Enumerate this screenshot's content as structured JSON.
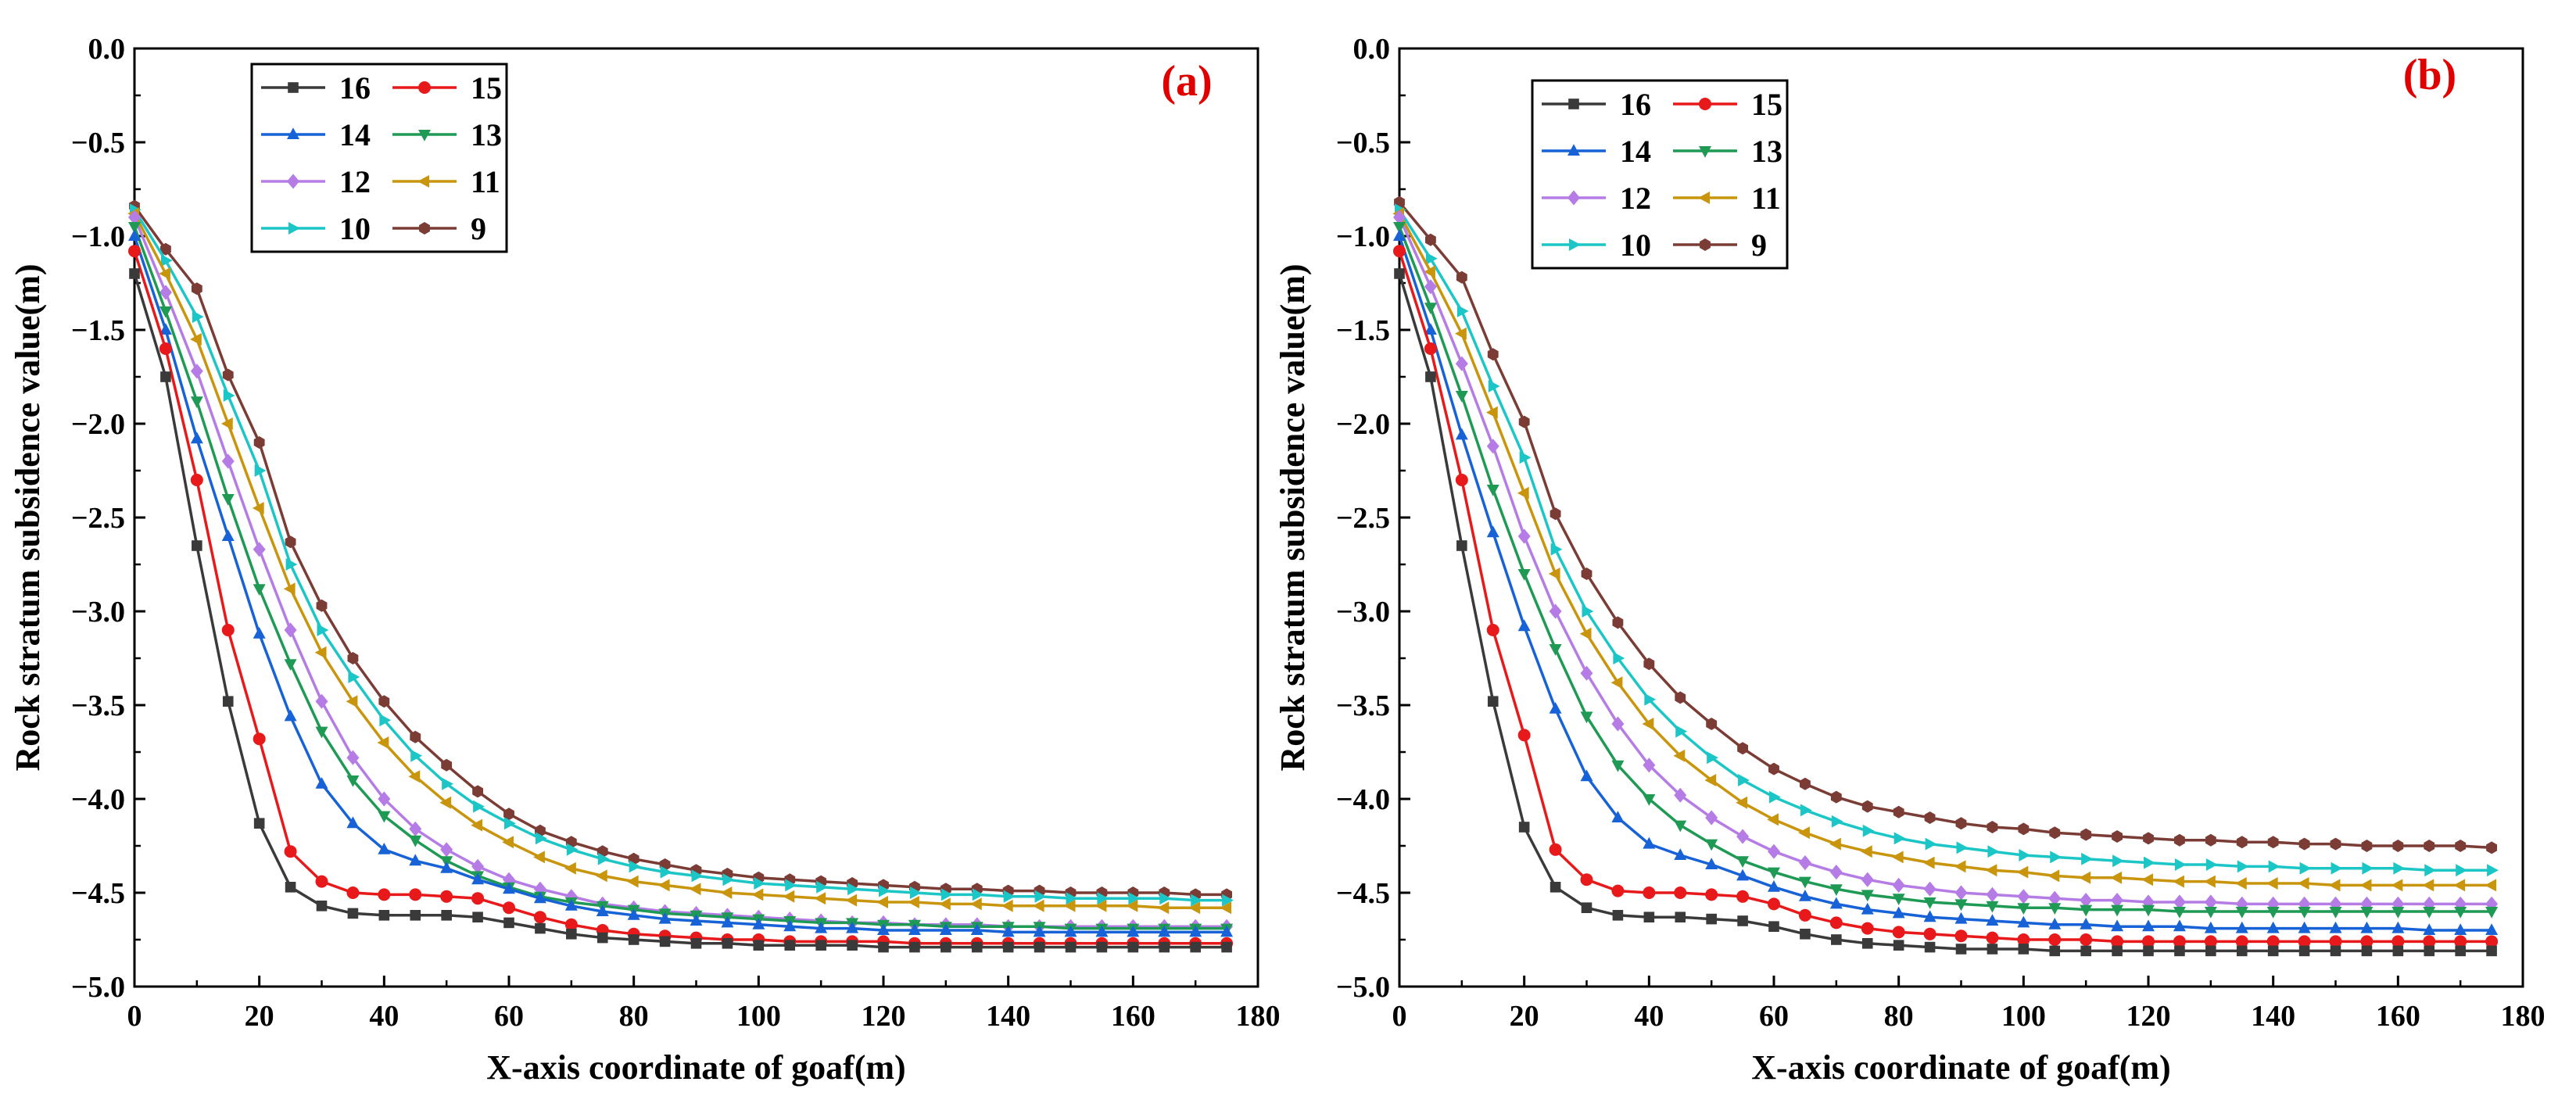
{
  "figure": {
    "background": "#ffffff"
  },
  "chart_data": [
    {
      "type": "line",
      "panel_label": "(a)",
      "panel_label_color": "#e00000",
      "xlabel": "X-axis coordinate of goaf(m)",
      "ylabel": "Rock stratum subsidence value(m)",
      "xlim": [
        0,
        180
      ],
      "ylim": [
        -5.0,
        0.0
      ],
      "xticks": [
        0,
        20,
        40,
        60,
        80,
        100,
        120,
        140,
        160,
        180
      ],
      "yticks": [
        0.0,
        -0.5,
        -1.0,
        -1.5,
        -2.0,
        -2.5,
        -3.0,
        -3.5,
        -4.0,
        -4.5,
        -5.0
      ],
      "ytick_labels": [
        "0.0",
        "−0.5",
        "−1.0",
        "−1.5",
        "−2.0",
        "−2.5",
        "−3.0",
        "−3.5",
        "−4.0",
        "−4.5",
        "−5.0"
      ],
      "legend_position": "top-left",
      "x": [
        0,
        5,
        10,
        15,
        20,
        25,
        30,
        35,
        40,
        45,
        50,
        55,
        60,
        65,
        70,
        75,
        80,
        85,
        90,
        95,
        100,
        105,
        110,
        115,
        120,
        125,
        130,
        135,
        140,
        145,
        150,
        155,
        160,
        165,
        170,
        175
      ],
      "series": [
        {
          "name": "16",
          "color": "#3a3a3a",
          "marker": "square",
          "values": [
            -1.2,
            -1.75,
            -2.65,
            -3.48,
            -4.13,
            -4.47,
            -4.57,
            -4.61,
            -4.62,
            -4.62,
            -4.62,
            -4.63,
            -4.66,
            -4.69,
            -4.72,
            -4.74,
            -4.75,
            -4.76,
            -4.77,
            -4.77,
            -4.78,
            -4.78,
            -4.78,
            -4.78,
            -4.79,
            -4.79,
            -4.79,
            -4.79,
            -4.79,
            -4.79,
            -4.79,
            -4.79,
            -4.79,
            -4.79,
            -4.79,
            -4.79
          ]
        },
        {
          "name": "15",
          "color": "#e8191a",
          "marker": "circle",
          "values": [
            -1.08,
            -1.6,
            -2.3,
            -3.1,
            -3.68,
            -4.28,
            -4.44,
            -4.5,
            -4.51,
            -4.51,
            -4.52,
            -4.53,
            -4.58,
            -4.63,
            -4.67,
            -4.7,
            -4.72,
            -4.73,
            -4.74,
            -4.75,
            -4.75,
            -4.76,
            -4.76,
            -4.76,
            -4.76,
            -4.77,
            -4.77,
            -4.77,
            -4.77,
            -4.77,
            -4.77,
            -4.77,
            -4.77,
            -4.77,
            -4.77,
            -4.77
          ]
        },
        {
          "name": "14",
          "color": "#1762d6",
          "marker": "triangle-up",
          "values": [
            -1.0,
            -1.5,
            -2.08,
            -2.6,
            -3.12,
            -3.56,
            -3.92,
            -4.13,
            -4.27,
            -4.33,
            -4.37,
            -4.43,
            -4.48,
            -4.53,
            -4.57,
            -4.6,
            -4.62,
            -4.64,
            -4.65,
            -4.66,
            -4.67,
            -4.68,
            -4.69,
            -4.69,
            -4.7,
            -4.7,
            -4.7,
            -4.7,
            -4.71,
            -4.71,
            -4.71,
            -4.71,
            -4.71,
            -4.71,
            -4.71,
            -4.71
          ]
        },
        {
          "name": "13",
          "color": "#1f9a55",
          "marker": "triangle-down",
          "values": [
            -0.95,
            -1.4,
            -1.88,
            -2.4,
            -2.88,
            -3.28,
            -3.64,
            -3.9,
            -4.09,
            -4.22,
            -4.33,
            -4.41,
            -4.47,
            -4.52,
            -4.55,
            -4.57,
            -4.59,
            -4.61,
            -4.62,
            -4.63,
            -4.64,
            -4.65,
            -4.66,
            -4.66,
            -4.67,
            -4.67,
            -4.68,
            -4.68,
            -4.68,
            -4.68,
            -4.69,
            -4.69,
            -4.69,
            -4.69,
            -4.69,
            -4.69
          ]
        },
        {
          "name": "12",
          "color": "#b57ce6",
          "marker": "diamond",
          "values": [
            -0.9,
            -1.3,
            -1.72,
            -2.2,
            -2.67,
            -3.1,
            -3.48,
            -3.78,
            -4.0,
            -4.16,
            -4.27,
            -4.36,
            -4.43,
            -4.48,
            -4.52,
            -4.56,
            -4.58,
            -4.6,
            -4.61,
            -4.62,
            -4.63,
            -4.64,
            -4.65,
            -4.66,
            -4.66,
            -4.67,
            -4.67,
            -4.67,
            -4.68,
            -4.68,
            -4.68,
            -4.68,
            -4.68,
            -4.68,
            -4.68,
            -4.68
          ]
        },
        {
          "name": "11",
          "color": "#c8950c",
          "marker": "triangle-left",
          "values": [
            -0.88,
            -1.2,
            -1.55,
            -2.0,
            -2.45,
            -2.88,
            -3.22,
            -3.48,
            -3.7,
            -3.88,
            -4.02,
            -4.14,
            -4.23,
            -4.31,
            -4.37,
            -4.41,
            -4.44,
            -4.46,
            -4.48,
            -4.5,
            -4.51,
            -4.52,
            -4.53,
            -4.54,
            -4.55,
            -4.55,
            -4.56,
            -4.56,
            -4.57,
            -4.57,
            -4.57,
            -4.57,
            -4.57,
            -4.58,
            -4.58,
            -4.58
          ]
        },
        {
          "name": "10",
          "color": "#1cc6c6",
          "marker": "triangle-right",
          "values": [
            -0.86,
            -1.13,
            -1.43,
            -1.85,
            -2.25,
            -2.75,
            -3.1,
            -3.35,
            -3.58,
            -3.77,
            -3.92,
            -4.04,
            -4.13,
            -4.21,
            -4.27,
            -4.32,
            -4.36,
            -4.39,
            -4.41,
            -4.43,
            -4.45,
            -4.46,
            -4.47,
            -4.48,
            -4.49,
            -4.5,
            -4.51,
            -4.51,
            -4.52,
            -4.52,
            -4.53,
            -4.53,
            -4.53,
            -4.53,
            -4.54,
            -4.54
          ]
        },
        {
          "name": "9",
          "color": "#7b3c35",
          "marker": "hexagon",
          "values": [
            -0.84,
            -1.07,
            -1.28,
            -1.74,
            -2.1,
            -2.63,
            -2.97,
            -3.25,
            -3.48,
            -3.67,
            -3.82,
            -3.96,
            -4.08,
            -4.17,
            -4.23,
            -4.28,
            -4.32,
            -4.35,
            -4.38,
            -4.4,
            -4.42,
            -4.43,
            -4.44,
            -4.45,
            -4.46,
            -4.47,
            -4.48,
            -4.48,
            -4.49,
            -4.49,
            -4.5,
            -4.5,
            -4.5,
            -4.5,
            -4.51,
            -4.51
          ]
        }
      ]
    },
    {
      "type": "line",
      "panel_label": "(b)",
      "panel_label_color": "#e00000",
      "xlabel": "X-axis coordinate of goaf(m)",
      "ylabel": "Rock stratum subsidence value(m)",
      "xlim": [
        0,
        180
      ],
      "ylim": [
        -5.0,
        0.0
      ],
      "xticks": [
        0,
        20,
        40,
        60,
        80,
        100,
        120,
        140,
        160,
        180
      ],
      "yticks": [
        0.0,
        -0.5,
        -1.0,
        -1.5,
        -2.0,
        -2.5,
        -3.0,
        -3.5,
        -4.0,
        -4.5,
        -5.0
      ],
      "ytick_labels": [
        "0.0",
        "−0.5",
        "−1.0",
        "−1.5",
        "−2.0",
        "−2.5",
        "−3.0",
        "−3.5",
        "−4.0",
        "−4.5",
        "−5.0"
      ],
      "legend_position": "top-left",
      "x": [
        0,
        5,
        10,
        15,
        20,
        25,
        30,
        35,
        40,
        45,
        50,
        55,
        60,
        65,
        70,
        75,
        80,
        85,
        90,
        95,
        100,
        105,
        110,
        115,
        120,
        125,
        130,
        135,
        140,
        145,
        150,
        155,
        160,
        165,
        170,
        175
      ],
      "series": [
        {
          "name": "16",
          "color": "#3a3a3a",
          "marker": "square",
          "values": [
            -1.2,
            -1.75,
            -2.65,
            -3.48,
            -4.15,
            -4.47,
            -4.58,
            -4.62,
            -4.63,
            -4.63,
            -4.64,
            -4.65,
            -4.68,
            -4.72,
            -4.75,
            -4.77,
            -4.78,
            -4.79,
            -4.8,
            -4.8,
            -4.8,
            -4.81,
            -4.81,
            -4.81,
            -4.81,
            -4.81,
            -4.81,
            -4.81,
            -4.81,
            -4.81,
            -4.81,
            -4.81,
            -4.81,
            -4.81,
            -4.81,
            -4.81
          ]
        },
        {
          "name": "15",
          "color": "#e8191a",
          "marker": "circle",
          "values": [
            -1.08,
            -1.6,
            -2.3,
            -3.1,
            -3.66,
            -4.27,
            -4.43,
            -4.49,
            -4.5,
            -4.5,
            -4.51,
            -4.52,
            -4.56,
            -4.62,
            -4.66,
            -4.69,
            -4.71,
            -4.72,
            -4.73,
            -4.74,
            -4.75,
            -4.75,
            -4.75,
            -4.76,
            -4.76,
            -4.76,
            -4.76,
            -4.76,
            -4.76,
            -4.76,
            -4.76,
            -4.76,
            -4.76,
            -4.76,
            -4.76,
            -4.76
          ]
        },
        {
          "name": "14",
          "color": "#1762d6",
          "marker": "triangle-up",
          "values": [
            -1.0,
            -1.5,
            -2.06,
            -2.58,
            -3.08,
            -3.52,
            -3.88,
            -4.1,
            -4.24,
            -4.3,
            -4.35,
            -4.41,
            -4.47,
            -4.52,
            -4.56,
            -4.59,
            -4.61,
            -4.63,
            -4.64,
            -4.65,
            -4.66,
            -4.67,
            -4.67,
            -4.68,
            -4.68,
            -4.68,
            -4.69,
            -4.69,
            -4.69,
            -4.69,
            -4.69,
            -4.69,
            -4.69,
            -4.7,
            -4.7,
            -4.7
          ]
        },
        {
          "name": "13",
          "color": "#1f9a55",
          "marker": "triangle-down",
          "values": [
            -0.95,
            -1.38,
            -1.85,
            -2.35,
            -2.8,
            -3.2,
            -3.56,
            -3.82,
            -4.0,
            -4.14,
            -4.24,
            -4.33,
            -4.39,
            -4.44,
            -4.48,
            -4.51,
            -4.53,
            -4.55,
            -4.56,
            -4.57,
            -4.58,
            -4.58,
            -4.59,
            -4.59,
            -4.59,
            -4.6,
            -4.6,
            -4.6,
            -4.6,
            -4.6,
            -4.6,
            -4.6,
            -4.6,
            -4.6,
            -4.6,
            -4.6
          ]
        },
        {
          "name": "12",
          "color": "#b57ce6",
          "marker": "diamond",
          "values": [
            -0.9,
            -1.27,
            -1.68,
            -2.12,
            -2.6,
            -3.0,
            -3.33,
            -3.6,
            -3.82,
            -3.98,
            -4.1,
            -4.2,
            -4.28,
            -4.34,
            -4.39,
            -4.43,
            -4.46,
            -4.48,
            -4.5,
            -4.51,
            -4.52,
            -4.53,
            -4.54,
            -4.54,
            -4.55,
            -4.55,
            -4.55,
            -4.56,
            -4.56,
            -4.56,
            -4.56,
            -4.56,
            -4.56,
            -4.56,
            -4.56,
            -4.56
          ]
        },
        {
          "name": "11",
          "color": "#c8950c",
          "marker": "triangle-left",
          "values": [
            -0.88,
            -1.19,
            -1.52,
            -1.94,
            -2.37,
            -2.8,
            -3.12,
            -3.38,
            -3.6,
            -3.77,
            -3.9,
            -4.02,
            -4.11,
            -4.18,
            -4.24,
            -4.28,
            -4.31,
            -4.34,
            -4.36,
            -4.38,
            -4.39,
            -4.41,
            -4.42,
            -4.42,
            -4.43,
            -4.44,
            -4.44,
            -4.45,
            -4.45,
            -4.45,
            -4.46,
            -4.46,
            -4.46,
            -4.46,
            -4.46,
            -4.46
          ]
        },
        {
          "name": "10",
          "color": "#1cc6c6",
          "marker": "triangle-right",
          "values": [
            -0.86,
            -1.12,
            -1.4,
            -1.8,
            -2.18,
            -2.67,
            -3.0,
            -3.25,
            -3.47,
            -3.64,
            -3.78,
            -3.9,
            -3.99,
            -4.06,
            -4.12,
            -4.17,
            -4.21,
            -4.24,
            -4.26,
            -4.28,
            -4.3,
            -4.31,
            -4.32,
            -4.33,
            -4.34,
            -4.35,
            -4.35,
            -4.36,
            -4.36,
            -4.37,
            -4.37,
            -4.37,
            -4.37,
            -4.38,
            -4.38,
            -4.38
          ]
        },
        {
          "name": "9",
          "color": "#7b3c35",
          "marker": "hexagon",
          "values": [
            -0.82,
            -1.02,
            -1.22,
            -1.63,
            -1.99,
            -2.48,
            -2.8,
            -3.06,
            -3.28,
            -3.46,
            -3.6,
            -3.73,
            -3.84,
            -3.92,
            -3.99,
            -4.04,
            -4.07,
            -4.1,
            -4.13,
            -4.15,
            -4.16,
            -4.18,
            -4.19,
            -4.2,
            -4.21,
            -4.22,
            -4.22,
            -4.23,
            -4.23,
            -4.24,
            -4.24,
            -4.25,
            -4.25,
            -4.25,
            -4.25,
            -4.26
          ]
        }
      ]
    }
  ]
}
